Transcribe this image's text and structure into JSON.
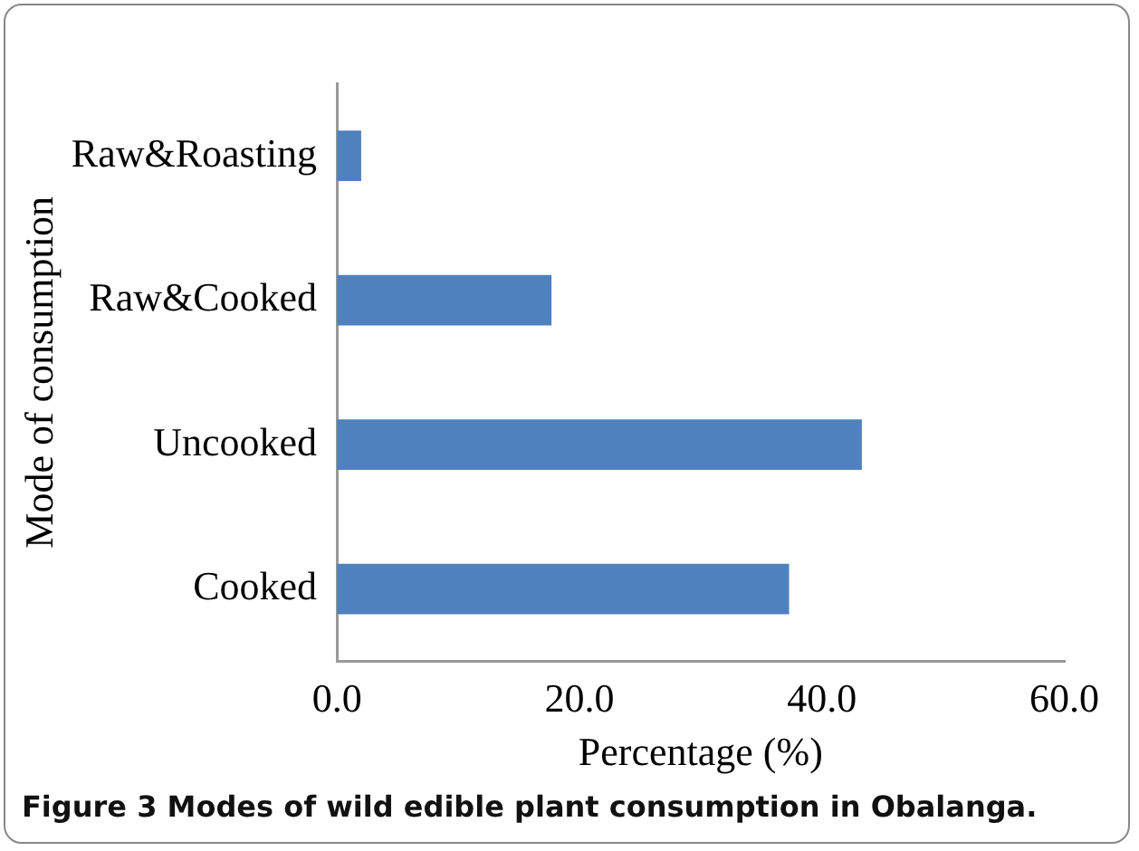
{
  "chart_data": {
    "type": "bar",
    "orientation": "horizontal",
    "xlabel": "Percentage (%)",
    "ylabel": "Mode of consumption",
    "categories": [
      "Raw&Roasting",
      "Raw&Cooked",
      "Uncooked",
      "Cooked"
    ],
    "values": [
      2.0,
      17.7,
      43.3,
      37.3
    ],
    "color": "#4f81bd",
    "xlim": [
      0,
      60
    ],
    "xticks": [
      {
        "value": 0,
        "label": "0.0"
      },
      {
        "value": 20,
        "label": "20.0"
      },
      {
        "value": 40,
        "label": "40.0"
      },
      {
        "value": 60,
        "label": "60.0"
      }
    ],
    "grid": false,
    "legend": false,
    "annotations": [
      "Figure 3 Modes of wild edible plant consumption in Obalanga."
    ]
  }
}
